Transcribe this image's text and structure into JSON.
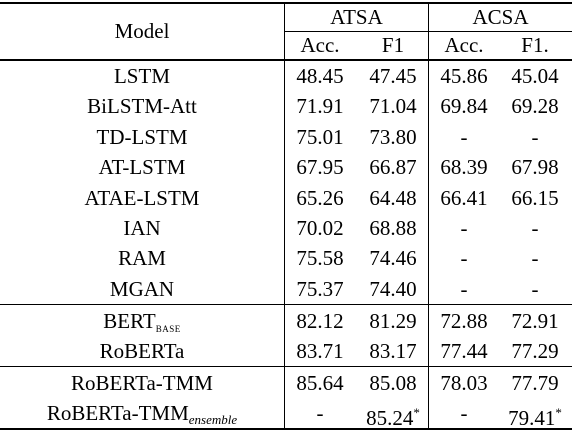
{
  "header": {
    "model": "Model",
    "groups": [
      "ATSA",
      "ACSA"
    ],
    "metrics": [
      "Acc.",
      "F1",
      "Acc.",
      "F1."
    ]
  },
  "body": [
    [
      {
        "model": {
          "name": "LSTM"
        },
        "values": [
          "48.45",
          "47.45",
          "45.86",
          "45.04"
        ]
      },
      {
        "model": {
          "name": "BiLSTM-Att"
        },
        "values": [
          "71.91",
          "71.04",
          "69.84",
          "69.28"
        ]
      },
      {
        "model": {
          "name": "TD-LSTM"
        },
        "values": [
          "75.01",
          "73.80",
          "-",
          "-"
        ]
      },
      {
        "model": {
          "name": "AT-LSTM"
        },
        "values": [
          "67.95",
          "66.87",
          "68.39",
          "67.98"
        ]
      },
      {
        "model": {
          "name": "ATAE-LSTM"
        },
        "values": [
          "65.26",
          "64.48",
          "66.41",
          "66.15"
        ]
      },
      {
        "model": {
          "name": "IAN"
        },
        "values": [
          "70.02",
          "68.88",
          "-",
          "-"
        ]
      },
      {
        "model": {
          "name": "RAM"
        },
        "values": [
          "75.58",
          "74.46",
          "-",
          "-"
        ]
      },
      {
        "model": {
          "name": "MGAN"
        },
        "values": [
          "75.37",
          "74.40",
          "-",
          "-"
        ]
      }
    ],
    [
      {
        "model": {
          "name": "BERT",
          "sub": "BASE"
        },
        "values": [
          "82.12",
          "81.29",
          "72.88",
          "72.91"
        ]
      },
      {
        "model": {
          "name": "RoBERTa"
        },
        "values": [
          "83.71",
          "83.17",
          "77.44",
          "77.29"
        ]
      }
    ],
    [
      {
        "model": {
          "name": "RoBERTa-TMM"
        },
        "values": [
          "85.64",
          "85.08",
          "78.03",
          "77.79"
        ]
      },
      {
        "model": {
          "name": "RoBERTa-TMM",
          "sub": "ensemble"
        },
        "values": [
          "-",
          {
            "text": "85.24",
            "sup": "*"
          },
          "-",
          {
            "text": "79.41",
            "sup": "*"
          }
        ]
      }
    ]
  ]
}
